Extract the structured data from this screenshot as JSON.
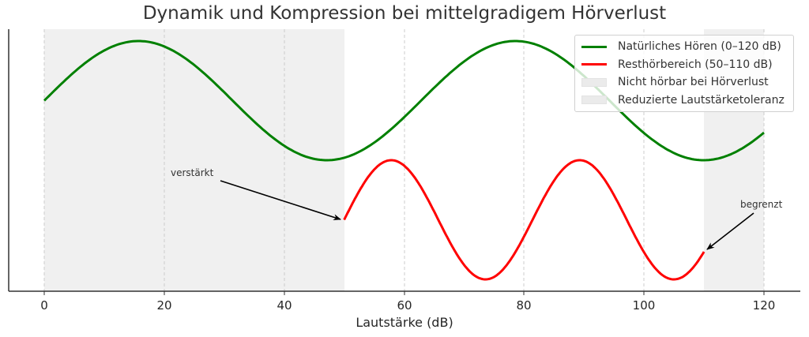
{
  "chart_data": {
    "type": "line",
    "title": "Dynamik und Kompression bei mittelgradigem Hörverlust",
    "xlabel": "Lautstärke (dB)",
    "ylabel": "",
    "xlim": [
      -6,
      126
    ],
    "ylim": [
      -3.2,
      1.2
    ],
    "xticks": [
      0,
      20,
      40,
      60,
      80,
      100,
      120
    ],
    "yticks_visible": false,
    "grid": {
      "x": true,
      "y": false,
      "style": "dashed"
    },
    "legend_position": "upper right",
    "series": [
      {
        "name": "Natürliches Hören (0–120 dB)",
        "color": "#008000",
        "formula": "sin(x/10)",
        "x": [
          0,
          5,
          10,
          15.7,
          20,
          25,
          30,
          35,
          40,
          47.1,
          50,
          55,
          60,
          65,
          70,
          78.5,
          85,
          90,
          95,
          100,
          105,
          110,
          115,
          120
        ],
        "y": [
          0,
          0.48,
          0.84,
          1.0,
          0.91,
          0.6,
          0.14,
          -0.35,
          -0.76,
          -1.0,
          -0.96,
          -0.71,
          -0.28,
          0.22,
          0.66,
          1.0,
          0.8,
          0.41,
          -0.08,
          -0.54,
          -0.88,
          -1.0,
          -0.88,
          -0.54
        ]
      },
      {
        "name": "Resthörbereich (50–110 dB)",
        "color": "#ff0000",
        "formula": "sin((x-50)/5) - 2",
        "x": [
          50,
          53,
          57.9,
          62,
          66,
          70,
          73.6,
          78,
          82,
          86,
          89.3,
          94,
          98,
          102,
          105,
          108,
          110
        ],
        "y": [
          -2.0,
          -1.44,
          -1.0,
          -1.34,
          -1.94,
          -2.76,
          -3.0,
          -2.66,
          -2.08,
          -1.21,
          -1.0,
          -1.41,
          -2.17,
          -2.88,
          -3.0,
          -2.75,
          -2.54
        ]
      }
    ],
    "shaded_regions": [
      {
        "name": "Nicht hörbar bei Hörverlust",
        "x_from": 0,
        "x_to": 50,
        "color": "#ebebeb"
      },
      {
        "name": "Reduzierte Lautstärketoleranz",
        "x_from": 110,
        "x_to": 120,
        "color": "#ebebeb"
      }
    ],
    "annotations": [
      {
        "text": "verstärkt",
        "xy": [
          50,
          -2.0
        ],
        "xytext": [
          21,
          -0.95
        ]
      },
      {
        "text": "begrenzt",
        "xy": [
          110,
          -2.54
        ],
        "xytext": [
          116,
          -1.75
        ]
      }
    ]
  },
  "title": "Dynamik und Kompression bei mittelgradigem Hörverlust",
  "xlabel": "Lautstärke (dB)",
  "xticks": [
    "0",
    "20",
    "40",
    "60",
    "80",
    "100",
    "120"
  ],
  "legend": [
    "Natürliches Hören (0–120 dB)",
    "Resthörbereich (50–110 dB)",
    "Nicht hörbar bei Hörverlust",
    "Reduzierte Lautstärketoleranz"
  ],
  "annotations": [
    "verstärkt",
    "begrenzt"
  ],
  "colors": {
    "green": "#008000",
    "red": "#ff0000",
    "shade": "#ebebeb"
  }
}
